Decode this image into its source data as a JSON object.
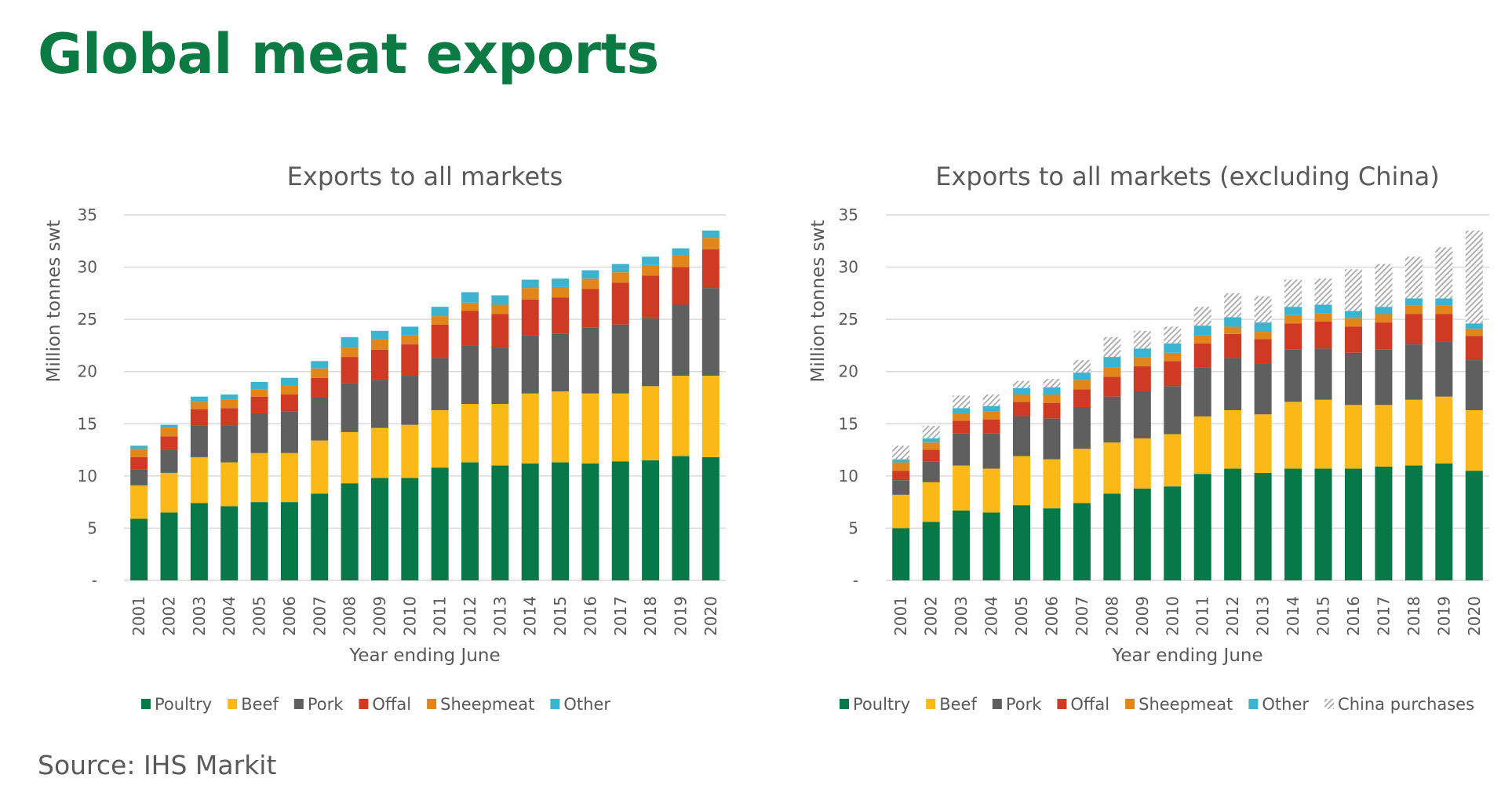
{
  "title": "Global meat exports",
  "source": "Source: IHS Markit",
  "colors": {
    "Poultry": "#077848",
    "Beef": "#fbb917",
    "Pork": "#5f5f5f",
    "Offal": "#cf3a24",
    "Sheepmeat": "#e0861a",
    "Other": "#3cb4cf",
    "China purchases": "hatch-gray"
  },
  "chart_data": [
    {
      "type": "bar",
      "stacked": true,
      "title": "Exports to all markets",
      "xlabel": "Year ending June",
      "ylabel": "Million tonnes swt",
      "ylim": [
        0,
        35
      ],
      "yticks": [
        "-",
        "5",
        "10",
        "15",
        "20",
        "25",
        "30",
        "35"
      ],
      "grid": true,
      "legend": "bottom",
      "categories": [
        "2001",
        "2002",
        "2003",
        "2004",
        "2005",
        "2006",
        "2007",
        "2008",
        "2009",
        "2010",
        "2011",
        "2012",
        "2013",
        "2014",
        "2015",
        "2016",
        "2017",
        "2018",
        "2019",
        "2020"
      ],
      "series": [
        {
          "name": "Poultry",
          "values": [
            5.9,
            6.5,
            7.4,
            7.1,
            7.5,
            7.5,
            8.3,
            9.3,
            9.8,
            9.8,
            10.8,
            11.3,
            11.0,
            11.2,
            11.3,
            11.2,
            11.4,
            11.5,
            11.9,
            11.8
          ]
        },
        {
          "name": "Beef",
          "values": [
            3.2,
            3.8,
            4.4,
            4.2,
            4.7,
            4.7,
            5.1,
            4.9,
            4.8,
            5.1,
            5.5,
            5.6,
            5.9,
            6.7,
            6.8,
            6.7,
            6.5,
            7.1,
            7.7,
            7.8
          ]
        },
        {
          "name": "Pork",
          "values": [
            1.5,
            2.2,
            3.0,
            3.5,
            3.8,
            4.0,
            4.1,
            4.7,
            4.6,
            4.7,
            5.0,
            5.6,
            5.4,
            5.6,
            5.5,
            6.3,
            6.6,
            6.5,
            6.8,
            8.4
          ]
        },
        {
          "name": "Offal",
          "values": [
            1.2,
            1.3,
            1.6,
            1.7,
            1.6,
            1.6,
            1.9,
            2.5,
            2.9,
            3.0,
            3.2,
            3.3,
            3.2,
            3.4,
            3.5,
            3.7,
            4.0,
            4.1,
            3.6,
            3.7
          ]
        },
        {
          "name": "Sheepmeat",
          "values": [
            0.8,
            0.8,
            0.7,
            0.8,
            0.7,
            0.9,
            0.9,
            0.9,
            1.0,
            0.9,
            0.8,
            0.8,
            0.9,
            1.1,
            1.0,
            1.0,
            1.0,
            1.0,
            1.1,
            1.1
          ]
        },
        {
          "name": "Other",
          "values": [
            0.3,
            0.3,
            0.5,
            0.5,
            0.7,
            0.7,
            0.7,
            1.0,
            0.8,
            0.8,
            0.9,
            1.0,
            0.9,
            0.8,
            0.8,
            0.8,
            0.8,
            0.8,
            0.7,
            0.7
          ]
        }
      ]
    },
    {
      "type": "bar",
      "stacked": true,
      "title": "Exports to all markets (excluding China)",
      "xlabel": "Year ending June",
      "ylabel": "Million tonnes swt",
      "ylim": [
        0,
        35
      ],
      "yticks": [
        "-",
        "5",
        "10",
        "15",
        "20",
        "25",
        "30",
        "35"
      ],
      "grid": true,
      "legend": "bottom",
      "categories": [
        "2001",
        "2002",
        "2003",
        "2004",
        "2005",
        "2006",
        "2007",
        "2008",
        "2009",
        "2010",
        "2011",
        "2012",
        "2013",
        "2014",
        "2015",
        "2016",
        "2017",
        "2018",
        "2019",
        "2020"
      ],
      "series": [
        {
          "name": "Poultry",
          "values": [
            5.0,
            5.6,
            6.7,
            6.5,
            7.2,
            6.9,
            7.4,
            8.3,
            8.8,
            9.0,
            10.2,
            10.7,
            10.3,
            10.7,
            10.7,
            10.7,
            10.9,
            11.0,
            11.2,
            10.5
          ]
        },
        {
          "name": "Beef",
          "values": [
            3.2,
            3.8,
            4.3,
            4.2,
            4.7,
            4.7,
            5.2,
            4.9,
            4.8,
            5.0,
            5.5,
            5.6,
            5.6,
            6.4,
            6.6,
            6.1,
            5.9,
            6.3,
            6.4,
            5.8
          ]
        },
        {
          "name": "Pork",
          "values": [
            1.4,
            2.0,
            3.1,
            3.4,
            3.8,
            3.9,
            4.0,
            4.4,
            4.5,
            4.6,
            4.7,
            5.0,
            4.9,
            5.0,
            4.9,
            5.0,
            5.3,
            5.3,
            5.3,
            4.8
          ]
        },
        {
          "name": "Offal",
          "values": [
            0.9,
            1.1,
            1.2,
            1.3,
            1.4,
            1.5,
            1.7,
            1.9,
            2.4,
            2.4,
            2.3,
            2.3,
            2.3,
            2.5,
            2.6,
            2.5,
            2.6,
            2.9,
            2.6,
            2.3
          ]
        },
        {
          "name": "Sheepmeat",
          "values": [
            0.8,
            0.7,
            0.7,
            0.8,
            0.7,
            0.8,
            0.9,
            0.9,
            0.9,
            0.8,
            0.8,
            0.7,
            0.7,
            0.8,
            0.8,
            0.8,
            0.8,
            0.8,
            0.8,
            0.7
          ]
        },
        {
          "name": "Other",
          "values": [
            0.3,
            0.4,
            0.5,
            0.5,
            0.6,
            0.7,
            0.7,
            1.0,
            0.8,
            0.9,
            0.9,
            0.9,
            0.9,
            0.8,
            0.8,
            0.7,
            0.7,
            0.7,
            0.7,
            0.5
          ]
        },
        {
          "name": "China purchases",
          "values": [
            1.3,
            1.2,
            1.2,
            1.1,
            0.7,
            0.8,
            1.2,
            1.9,
            1.7,
            1.6,
            1.8,
            2.3,
            2.5,
            2.6,
            2.5,
            4.0,
            4.1,
            4.0,
            4.9,
            8.9
          ]
        }
      ]
    }
  ]
}
